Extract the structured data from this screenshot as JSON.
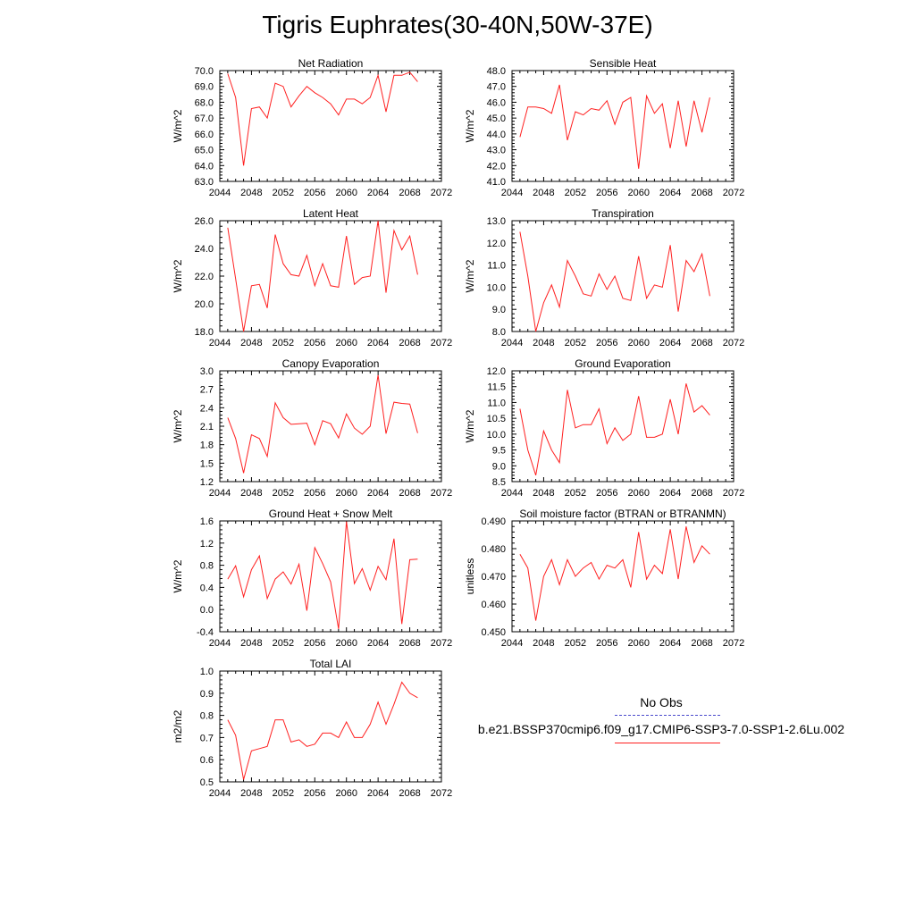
{
  "figure": {
    "title": "Tigris Euphrates(30-40N,50W-37E)"
  },
  "legend": {
    "obs_label": "No Obs",
    "obs_color": "#4a4acc",
    "model_label": "b.e21.BSSP370cmip6.f09_g17.CMIP6-SSP3-7.0-SSP1-2.6Lu.002",
    "model_color": "#ff2020"
  },
  "chart_data": [
    {
      "type": "line",
      "title": "Net Radiation",
      "ylabel": "W/m^2",
      "xlim": [
        2044,
        2072
      ],
      "xticks": [
        2044,
        2048,
        2052,
        2056,
        2060,
        2064,
        2068,
        2072
      ],
      "ylim": [
        63.0,
        70.0
      ],
      "yticks": [
        "63.0",
        "64.0",
        "65.0",
        "66.0",
        "67.0",
        "68.0",
        "69.0",
        "70.0"
      ],
      "series": [
        {
          "color": "#ff2020",
          "x": [
            2045,
            2046,
            2047,
            2048,
            2049,
            2050,
            2051,
            2052,
            2053,
            2054,
            2055,
            2056,
            2057,
            2058,
            2059,
            2060,
            2061,
            2062,
            2063,
            2064,
            2065,
            2066,
            2067,
            2068,
            2069
          ],
          "values": [
            69.8,
            68.3,
            64.0,
            67.6,
            67.7,
            67.0,
            69.2,
            69.0,
            67.7,
            68.4,
            69.0,
            68.6,
            68.3,
            67.9,
            67.2,
            68.2,
            68.2,
            67.9,
            68.3,
            69.7,
            67.4,
            69.7,
            69.7,
            69.9,
            69.3
          ]
        }
      ]
    },
    {
      "type": "line",
      "title": "Sensible Heat",
      "ylabel": "W/m^2",
      "xlim": [
        2044,
        2072
      ],
      "xticks": [
        2044,
        2048,
        2052,
        2056,
        2060,
        2064,
        2068,
        2072
      ],
      "ylim": [
        41.0,
        48.0
      ],
      "yticks": [
        "41.0",
        "42.0",
        "43.0",
        "44.0",
        "45.0",
        "46.0",
        "47.0",
        "48.0"
      ],
      "series": [
        {
          "color": "#ff2020",
          "x": [
            2045,
            2046,
            2047,
            2048,
            2049,
            2050,
            2051,
            2052,
            2053,
            2054,
            2055,
            2056,
            2057,
            2058,
            2059,
            2060,
            2061,
            2062,
            2063,
            2064,
            2065,
            2066,
            2067,
            2068,
            2069
          ],
          "values": [
            43.8,
            45.7,
            45.7,
            45.6,
            45.3,
            47.1,
            43.6,
            45.4,
            45.2,
            45.6,
            45.5,
            46.1,
            44.6,
            46.0,
            46.3,
            41.8,
            46.4,
            45.3,
            45.9,
            43.1,
            46.1,
            43.2,
            46.1,
            44.1,
            46.3
          ]
        }
      ]
    },
    {
      "type": "line",
      "title": "Latent Heat",
      "ylabel": "W/m^2",
      "xlim": [
        2044,
        2072
      ],
      "xticks": [
        2044,
        2048,
        2052,
        2056,
        2060,
        2064,
        2068,
        2072
      ],
      "ylim": [
        18.0,
        26.0
      ],
      "yticks": [
        "18.0",
        "20.0",
        "22.0",
        "24.0",
        "26.0"
      ],
      "series": [
        {
          "color": "#ff2020",
          "x": [
            2045,
            2046,
            2047,
            2048,
            2049,
            2050,
            2051,
            2052,
            2053,
            2054,
            2055,
            2056,
            2057,
            2058,
            2059,
            2060,
            2061,
            2062,
            2063,
            2064,
            2065,
            2066,
            2067,
            2068,
            2069
          ],
          "values": [
            25.5,
            21.8,
            18.0,
            21.3,
            21.4,
            19.7,
            25.0,
            22.9,
            22.1,
            22.0,
            23.5,
            21.3,
            22.9,
            21.3,
            21.2,
            24.9,
            21.4,
            21.9,
            22.0,
            26.0,
            20.8,
            25.3,
            23.9,
            24.9,
            22.1
          ]
        }
      ]
    },
    {
      "type": "line",
      "title": "Transpiration",
      "ylabel": "W/m^2",
      "xlim": [
        2044,
        2072
      ],
      "xticks": [
        2044,
        2048,
        2052,
        2056,
        2060,
        2064,
        2068,
        2072
      ],
      "ylim": [
        8.0,
        13.0
      ],
      "yticks": [
        "8.0",
        "9.0",
        "10.0",
        "11.0",
        "12.0",
        "13.0"
      ],
      "series": [
        {
          "color": "#ff2020",
          "x": [
            2045,
            2046,
            2047,
            2048,
            2049,
            2050,
            2051,
            2052,
            2053,
            2054,
            2055,
            2056,
            2057,
            2058,
            2059,
            2060,
            2061,
            2062,
            2063,
            2064,
            2065,
            2066,
            2067,
            2068,
            2069
          ],
          "values": [
            12.5,
            10.5,
            8.0,
            9.3,
            10.1,
            9.1,
            11.2,
            10.5,
            9.7,
            9.6,
            10.6,
            9.9,
            10.5,
            9.5,
            9.4,
            11.4,
            9.5,
            10.1,
            10.0,
            11.9,
            8.9,
            11.2,
            10.7,
            11.5,
            9.6
          ]
        }
      ]
    },
    {
      "type": "line",
      "title": "Canopy Evaporation",
      "ylabel": "W/m^2",
      "xlim": [
        2044,
        2072
      ],
      "xticks": [
        2044,
        2048,
        2052,
        2056,
        2060,
        2064,
        2068,
        2072
      ],
      "ylim": [
        1.2,
        3.0
      ],
      "yticks": [
        "1.2",
        "1.5",
        "1.8",
        "2.1",
        "2.4",
        "2.7",
        "3.0"
      ],
      "series": [
        {
          "color": "#ff2020",
          "x": [
            2045,
            2046,
            2047,
            2048,
            2049,
            2050,
            2051,
            2052,
            2053,
            2054,
            2055,
            2056,
            2057,
            2058,
            2059,
            2060,
            2061,
            2062,
            2063,
            2064,
            2065,
            2066,
            2067,
            2068,
            2069
          ],
          "values": [
            2.24,
            1.9,
            1.34,
            1.96,
            1.9,
            1.61,
            2.48,
            2.24,
            2.13,
            2.14,
            2.15,
            1.8,
            2.19,
            2.14,
            1.91,
            2.3,
            2.07,
            1.97,
            2.1,
            2.93,
            1.98,
            2.49,
            2.47,
            2.46,
            1.99
          ]
        }
      ]
    },
    {
      "type": "line",
      "title": "Ground Evaporation",
      "ylabel": "W/m^2",
      "xlim": [
        2044,
        2072
      ],
      "xticks": [
        2044,
        2048,
        2052,
        2056,
        2060,
        2064,
        2068,
        2072
      ],
      "ylim": [
        8.5,
        12.0
      ],
      "yticks": [
        "8.5",
        "9.0",
        "9.5",
        "10.0",
        "10.5",
        "11.0",
        "11.5",
        "12.0"
      ],
      "series": [
        {
          "color": "#ff2020",
          "x": [
            2045,
            2046,
            2047,
            2048,
            2049,
            2050,
            2051,
            2052,
            2053,
            2054,
            2055,
            2056,
            2057,
            2058,
            2059,
            2060,
            2061,
            2062,
            2063,
            2064,
            2065,
            2066,
            2067,
            2068,
            2069
          ],
          "values": [
            10.8,
            9.5,
            8.7,
            10.1,
            9.5,
            9.1,
            11.4,
            10.2,
            10.3,
            10.3,
            10.8,
            9.7,
            10.2,
            9.8,
            10.0,
            11.2,
            9.9,
            9.9,
            10.0,
            11.1,
            10.0,
            11.6,
            10.7,
            10.9,
            10.6
          ]
        }
      ]
    },
    {
      "type": "line",
      "title": "Ground Heat + Snow Melt",
      "ylabel": "W/m^2",
      "xlim": [
        2044,
        2072
      ],
      "xticks": [
        2044,
        2048,
        2052,
        2056,
        2060,
        2064,
        2068,
        2072
      ],
      "ylim": [
        -0.4,
        1.6
      ],
      "yticks": [
        "-0.4",
        "0.0",
        "0.4",
        "0.8",
        "1.2",
        "1.6"
      ],
      "series": [
        {
          "color": "#ff2020",
          "x": [
            2045,
            2046,
            2047,
            2048,
            2049,
            2050,
            2051,
            2052,
            2053,
            2054,
            2055,
            2056,
            2057,
            2058,
            2059,
            2060,
            2061,
            2062,
            2063,
            2064,
            2065,
            2066,
            2067,
            2068,
            2069
          ],
          "values": [
            0.55,
            0.79,
            0.23,
            0.72,
            0.97,
            0.2,
            0.55,
            0.68,
            0.46,
            0.82,
            -0.02,
            1.12,
            0.83,
            0.5,
            -0.35,
            1.59,
            0.47,
            0.74,
            0.35,
            0.78,
            0.54,
            1.28,
            -0.26,
            0.9,
            0.91
          ]
        }
      ]
    },
    {
      "type": "line",
      "title": "Soil moisture factor (BTRAN or BTRANMN)",
      "ylabel": "unitless",
      "xlim": [
        2044,
        2072
      ],
      "xticks": [
        2044,
        2048,
        2052,
        2056,
        2060,
        2064,
        2068,
        2072
      ],
      "ylim": [
        0.45,
        0.49
      ],
      "yticks": [
        "0.450",
        "0.460",
        "0.470",
        "0.480",
        "0.490"
      ],
      "series": [
        {
          "color": "#ff2020",
          "x": [
            2045,
            2046,
            2047,
            2048,
            2049,
            2050,
            2051,
            2052,
            2053,
            2054,
            2055,
            2056,
            2057,
            2058,
            2059,
            2060,
            2061,
            2062,
            2063,
            2064,
            2065,
            2066,
            2067,
            2068,
            2069
          ],
          "values": [
            0.478,
            0.473,
            0.454,
            0.47,
            0.476,
            0.467,
            0.476,
            0.47,
            0.473,
            0.475,
            0.469,
            0.474,
            0.473,
            0.476,
            0.466,
            0.486,
            0.469,
            0.474,
            0.471,
            0.487,
            0.469,
            0.488,
            0.475,
            0.481,
            0.478
          ]
        }
      ]
    },
    {
      "type": "line",
      "title": "Total LAI",
      "ylabel": "m2/m2",
      "xlim": [
        2044,
        2072
      ],
      "xticks": [
        2044,
        2048,
        2052,
        2056,
        2060,
        2064,
        2068,
        2072
      ],
      "ylim": [
        0.5,
        1.0
      ],
      "yticks": [
        "0.5",
        "0.6",
        "0.7",
        "0.8",
        "0.9",
        "1.0"
      ],
      "series": [
        {
          "color": "#ff2020",
          "x": [
            2045,
            2046,
            2047,
            2048,
            2049,
            2050,
            2051,
            2052,
            2053,
            2054,
            2055,
            2056,
            2057,
            2058,
            2059,
            2060,
            2061,
            2062,
            2063,
            2064,
            2065,
            2066,
            2067,
            2068,
            2069
          ],
          "values": [
            0.78,
            0.71,
            0.51,
            0.64,
            0.65,
            0.66,
            0.78,
            0.78,
            0.68,
            0.69,
            0.66,
            0.67,
            0.72,
            0.72,
            0.7,
            0.77,
            0.7,
            0.7,
            0.76,
            0.86,
            0.76,
            0.85,
            0.95,
            0.9,
            0.88
          ]
        }
      ]
    }
  ]
}
